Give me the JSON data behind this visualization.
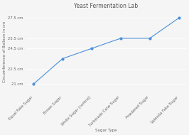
{
  "title": "Yeast Fermentation Lab",
  "xlabel": "Sugar Type",
  "ylabel": "Circumference of Balloon in cm",
  "categories": [
    "Equal Fake Sugar",
    "Brown Sugar",
    "White Sugar (control)",
    "Turbinado Cane Sugar",
    "Powdered Sugar",
    "Splenda Fake Sugar"
  ],
  "y_values": [
    21,
    23.5,
    24.5,
    25.5,
    25.5,
    27.5
  ],
  "y_tick_vals": [
    21,
    22.5,
    24.5,
    25.5,
    27.5
  ],
  "y_tick_labels": [
    "21 cm",
    "22.5 cm",
    "24.5 cm",
    "25.5 cm",
    "27.5 cm"
  ],
  "ylim": [
    20.2,
    28.2
  ],
  "line_color": "#4a90d9",
  "marker": "o",
  "marker_size": 2.0,
  "marker_color": "#4a90d9",
  "bg_color": "#f5f5f5",
  "grid_color": "#ffffff",
  "title_fontsize": 5.5,
  "label_fontsize": 4.0,
  "tick_fontsize": 3.8
}
